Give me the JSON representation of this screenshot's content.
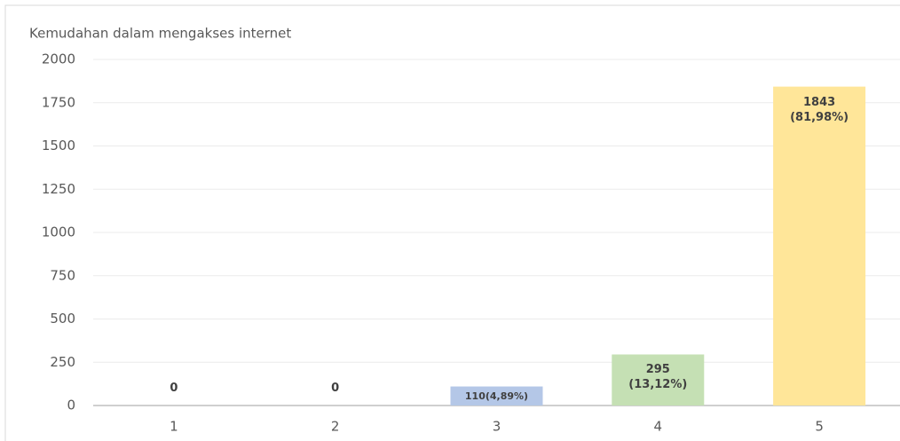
{
  "chart_data": {
    "type": "bar",
    "title": "Kemudahan dalam mengakses internet",
    "categories": [
      "1",
      "2",
      "3",
      "4",
      "5"
    ],
    "values": [
      0,
      0,
      110,
      295,
      1843
    ],
    "value_labels": [
      "0",
      "0",
      "110(4,89%)",
      "295\n(13,12%)",
      "1843\n(81,98%)"
    ],
    "colors": [
      null,
      null,
      "#b4c7e7",
      "#c5e0b4",
      "#ffe699"
    ],
    "ylim": [
      0,
      2000
    ],
    "yticks": [
      0,
      250,
      500,
      750,
      1000,
      1250,
      1500,
      1750,
      2000
    ],
    "grid": true
  }
}
